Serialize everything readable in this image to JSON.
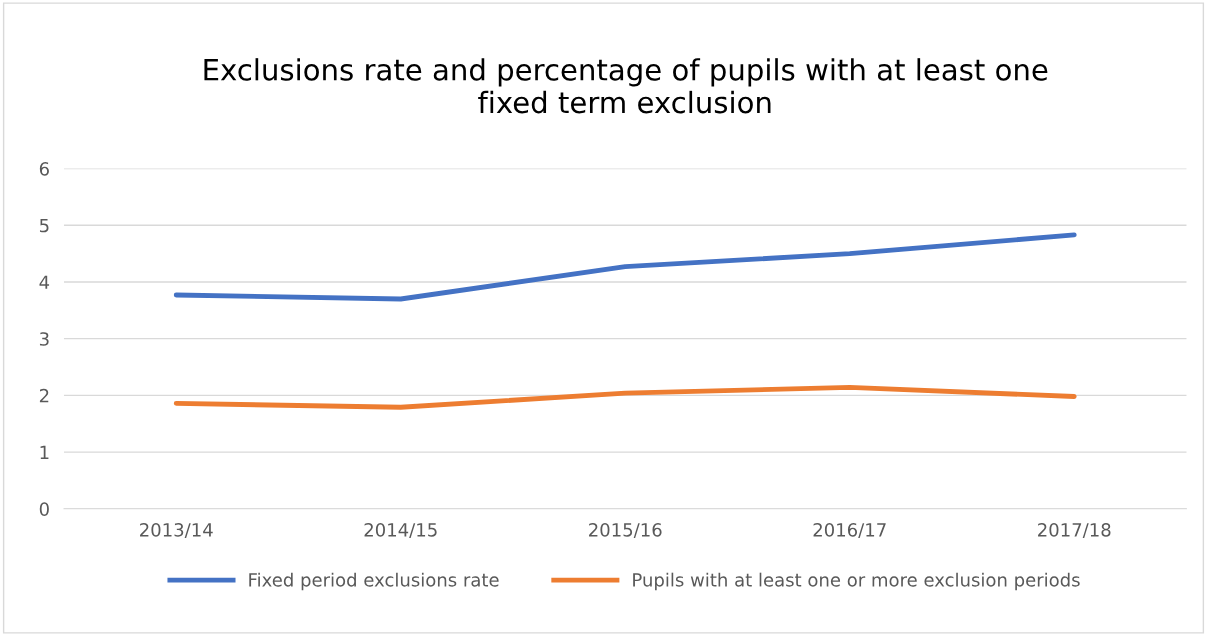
{
  "chart_data": {
    "type": "line",
    "title": "Exclusions rate and percentage of pupils with at least one\nfixed term exclusion",
    "categories": [
      "2013/14",
      "2014/15",
      "2015/16",
      "2016/17",
      "2017/18"
    ],
    "series": [
      {
        "name": "Fixed period exclusions rate",
        "color": "#4472c4",
        "values": [
          3.77,
          3.7,
          4.27,
          4.5,
          4.83
        ]
      },
      {
        "name": "Pupils with at least one or more exclusion periods",
        "color": "#ed7d31",
        "values": [
          1.86,
          1.79,
          2.04,
          2.14,
          1.98
        ]
      }
    ],
    "ylim": [
      0,
      6
    ],
    "yticks": [
      0,
      1,
      2,
      3,
      4,
      5,
      6
    ],
    "grid": "y",
    "legend": "bottom",
    "marker": "none",
    "line_style": "solid"
  }
}
